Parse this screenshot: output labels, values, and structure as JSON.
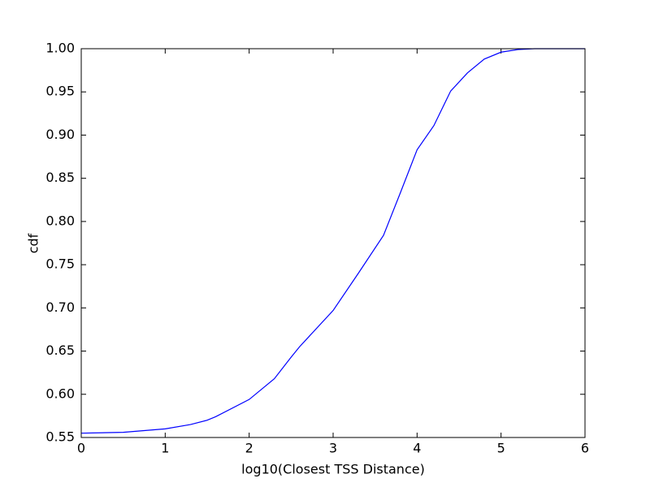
{
  "chart_data": {
    "type": "line",
    "xlabel": "log10(Closest TSS Distance)",
    "ylabel": "cdf",
    "x": [
      0,
      0.5,
      1.0,
      1.3,
      1.5,
      1.6,
      2.0,
      2.3,
      2.5,
      2.6,
      3.0,
      3.3,
      3.6,
      3.8,
      4.0,
      4.2,
      4.4,
      4.6,
      4.8,
      5.0,
      5.2,
      5.4,
      6.0
    ],
    "series": [
      {
        "name": "cdf",
        "color": "#0000ff",
        "values": [
          0.555,
          0.556,
          0.56,
          0.565,
          0.57,
          0.574,
          0.594,
          0.618,
          0.643,
          0.655,
          0.697,
          0.74,
          0.784,
          0.833,
          0.883,
          0.911,
          0.951,
          0.972,
          0.988,
          0.996,
          0.999,
          1.0,
          1.0
        ]
      }
    ],
    "xlim": [
      0,
      6
    ],
    "xticks": [
      0,
      1,
      2,
      3,
      4,
      5,
      6
    ],
    "ylim": [
      0.55,
      1.0
    ],
    "yticks": [
      0.55,
      {
        "value": 0.6,
        "label": "0.60"
      },
      0.65,
      {
        "value": 0.7,
        "label": "0.70"
      },
      0.75,
      {
        "value": 0.8,
        "label": "0.80"
      },
      0.85,
      {
        "value": 0.9,
        "label": "0.90"
      },
      0.95,
      {
        "value": 1.0,
        "label": "1.00"
      }
    ],
    "grid": false
  }
}
